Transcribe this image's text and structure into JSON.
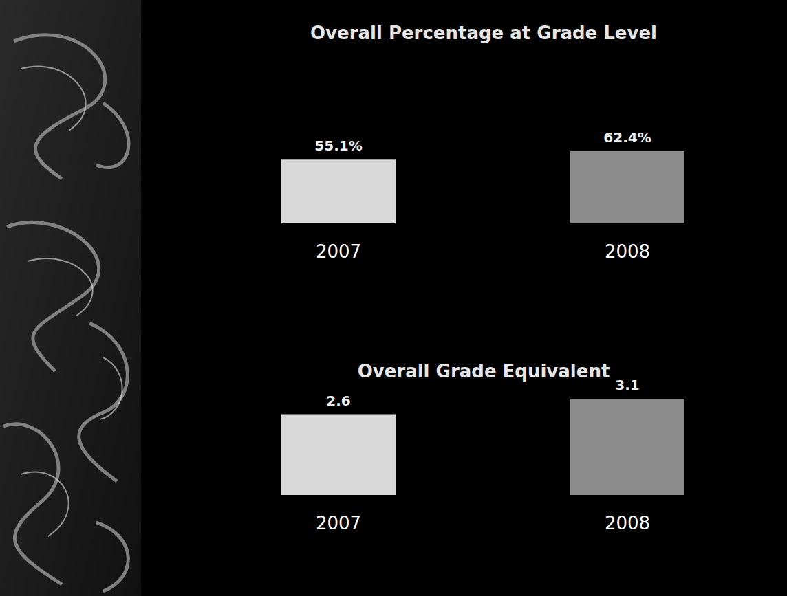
{
  "chart_data": [
    {
      "type": "bar",
      "title": "Overall Percentage at Grade Level",
      "categories": [
        "2007",
        "2008"
      ],
      "values": [
        55.1,
        62.4
      ],
      "value_labels": [
        "55.1%",
        "62.4%"
      ],
      "colors": [
        "#d9d9d9",
        "#8c8c8c"
      ],
      "ylim": [
        0,
        62.4
      ],
      "data_labels": true,
      "tick_labels": false,
      "grid": false
    },
    {
      "type": "bar",
      "title": "Overall Grade Equivalent",
      "categories": [
        "2007",
        "2008"
      ],
      "values": [
        2.6,
        3.1
      ],
      "colors": [
        "#d9d9d9",
        "#8c8c8c"
      ],
      "ylim": [
        0,
        3.1
      ],
      "data_labels": true,
      "tick_labels": false,
      "grid": false
    }
  ]
}
